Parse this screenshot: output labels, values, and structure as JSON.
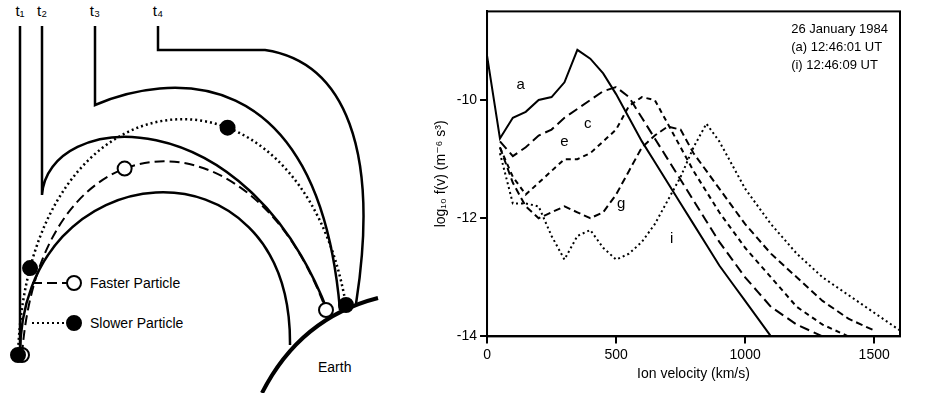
{
  "diagram": {
    "time_labels": [
      "t₁",
      "t₂",
      "t₃",
      "t₄"
    ],
    "legend": [
      {
        "label": "Faster Particle",
        "line_style": "long_dash",
        "marker": "open_circle"
      },
      {
        "label": "Slower Particle",
        "line_style": "dotted",
        "marker": "filled_circle"
      }
    ],
    "earth_label": "Earth"
  },
  "chart_data": {
    "type": "line",
    "x_label": "Ion velocity (km/s)",
    "y_label": "log₁₀ f(v) (m⁻⁶ s³)",
    "annotations": [
      "26 January 1984",
      "(a) 12:46:01 UT",
      "(i) 12:46:09 UT"
    ],
    "xlim": [
      0,
      1600
    ],
    "xticks": [
      0,
      500,
      1000,
      1500
    ],
    "ylim": [
      -14,
      -8.5
    ],
    "yticks": [
      -14,
      -12,
      -10
    ],
    "grid": false,
    "legend": "none",
    "x": [
      0,
      50,
      100,
      150,
      200,
      250,
      300,
      350,
      400,
      450,
      500,
      550,
      600,
      650,
      700,
      750,
      800,
      850,
      900,
      950,
      1000,
      1050,
      1100,
      1150,
      1200,
      1250,
      1300,
      1350,
      1400,
      1450,
      1500,
      1550,
      1600
    ],
    "series": [
      {
        "name": "a",
        "color": "#000000",
        "line_style": "solid",
        "marker": "none",
        "label_position": [
          130,
          -9.75
        ],
        "values": [
          -9.25,
          -10.65,
          -10.3,
          -10.2,
          -10.0,
          -9.95,
          -9.7,
          -9.15,
          -9.3,
          -9.55,
          -9.9,
          -10.3,
          -10.7,
          -11.05,
          -11.4,
          -11.75,
          -12.1,
          -12.45,
          -12.8,
          -13.1,
          -13.4,
          -13.7,
          -14.0,
          null,
          null,
          null,
          null,
          null,
          null,
          null,
          null,
          null,
          null
        ]
      },
      {
        "name": "c",
        "color": "#000000",
        "line_style": "long_dash",
        "marker": "none",
        "label_position": [
          390,
          -10.4
        ],
        "values": [
          null,
          -10.7,
          -10.95,
          -10.8,
          -10.6,
          -10.5,
          -10.3,
          -10.15,
          -10.0,
          -9.85,
          -9.78,
          -9.95,
          -10.3,
          -10.65,
          -11.0,
          -11.35,
          -11.7,
          -12.05,
          -12.4,
          -12.7,
          -13.0,
          -13.25,
          -13.5,
          -13.65,
          -13.8,
          -13.9,
          -14.0,
          null,
          null,
          null,
          null,
          null,
          null
        ]
      },
      {
        "name": "e",
        "color": "#000000",
        "line_style": "short_dash",
        "marker": "none",
        "label_position": [
          300,
          -10.7
        ],
        "values": [
          null,
          -10.8,
          -11.3,
          -11.6,
          -11.4,
          -11.2,
          -11.0,
          -11.0,
          -10.9,
          -10.7,
          -10.5,
          -10.1,
          -9.95,
          -10.0,
          -10.4,
          -10.8,
          -11.2,
          -11.55,
          -11.9,
          -12.2,
          -12.5,
          -12.75,
          -13.0,
          -13.25,
          -13.5,
          -13.65,
          -13.8,
          -13.9,
          -14.0,
          null,
          null,
          null,
          null
        ]
      },
      {
        "name": "g",
        "color": "#000000",
        "line_style": "dashed",
        "marker": "none",
        "label_position": [
          520,
          -11.75
        ],
        "values": [
          null,
          -10.8,
          -11.4,
          -11.8,
          -12.0,
          -11.9,
          -11.8,
          -11.9,
          -12.0,
          -11.9,
          -11.6,
          -11.2,
          -10.8,
          -10.6,
          -10.45,
          -10.5,
          -10.9,
          -11.2,
          -11.5,
          -11.8,
          -12.1,
          -12.35,
          -12.6,
          -12.8,
          -13.0,
          -13.2,
          -13.4,
          -13.55,
          -13.7,
          -13.8,
          -13.9,
          null,
          null
        ]
      },
      {
        "name": "i",
        "color": "#000000",
        "line_style": "dotted",
        "marker": "none",
        "label_position": [
          715,
          -12.35
        ],
        "values": [
          null,
          -10.9,
          -11.75,
          -11.75,
          -11.8,
          -12.3,
          -12.7,
          -12.3,
          -12.2,
          -12.5,
          -12.7,
          -12.6,
          -12.4,
          -12.1,
          -11.7,
          -11.3,
          -10.8,
          -10.4,
          -10.7,
          -11.1,
          -11.5,
          -11.8,
          -12.1,
          -12.35,
          -12.6,
          -12.8,
          -13.0,
          -13.15,
          -13.3,
          -13.45,
          -13.6,
          -13.75,
          -13.9
        ]
      }
    ]
  }
}
